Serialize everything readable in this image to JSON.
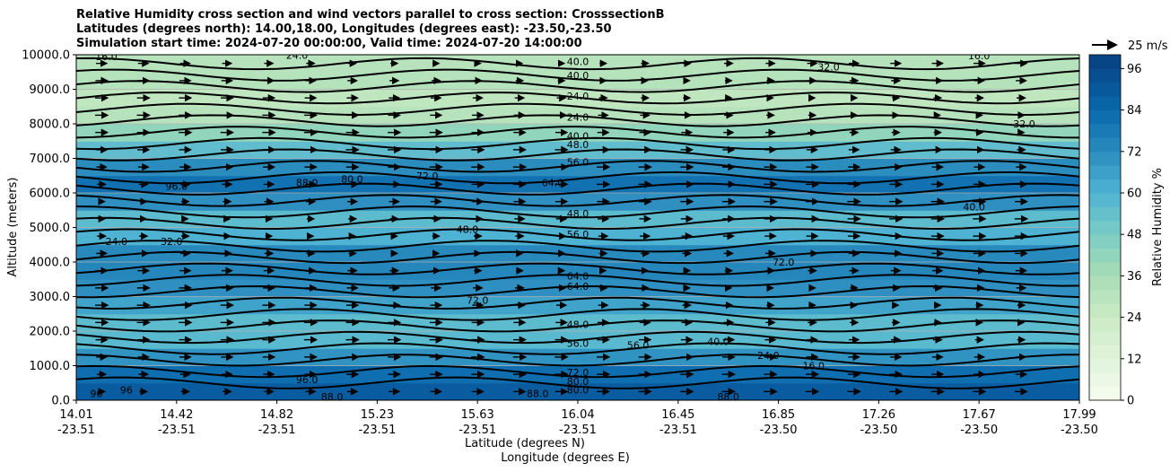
{
  "chart_data": {
    "type": "contour",
    "title_lines": [
      "Relative Humidity cross section and wind vectors parallel to cross section: CrosssectionB",
      "Latitudes (degrees north): 14.00,18.00, Longitudes (degrees east): -23.50,-23.50",
      "Simulation start time: 2024-07-20 00:00:00, Valid time: 2024-07-20 14:00:00"
    ],
    "ylabel": "Altitude (meters)",
    "xlabel_1": "Latitude (degrees N)",
    "xlabel_2": "Longitude (degrees E)",
    "ylim": [
      0,
      10000
    ],
    "yticks": [
      "0.0",
      "1000.0",
      "2000.0",
      "3000.0",
      "4000.0",
      "5000.0",
      "6000.0",
      "7000.0",
      "8000.0",
      "9000.0",
      "10000.0"
    ],
    "xticks_lat": [
      "14.01",
      "14.42",
      "14.82",
      "15.23",
      "15.63",
      "16.04",
      "16.45",
      "16.85",
      "17.26",
      "17.67",
      "17.99"
    ],
    "xticks_lon": [
      "-23.51",
      "-23.51",
      "-23.51",
      "-23.51",
      "-23.51",
      "-23.51",
      "-23.51",
      "-23.50",
      "-23.50",
      "-23.50",
      "-23.50"
    ],
    "colorbar_label": "Relative Humidity %",
    "colorbar_ticks": [
      "0",
      "12",
      "24",
      "36",
      "48",
      "60",
      "72",
      "84",
      "96"
    ],
    "colorbar_range": [
      0,
      100
    ],
    "quiver_key_label": "25 m/s",
    "humidity_profile": [
      {
        "alt": 0,
        "rh": 92
      },
      {
        "alt": 500,
        "rh": 86
      },
      {
        "alt": 1000,
        "rh": 78
      },
      {
        "alt": 1500,
        "rh": 62
      },
      {
        "alt": 2000,
        "rh": 52
      },
      {
        "alt": 2500,
        "rh": 60
      },
      {
        "alt": 3000,
        "rh": 70
      },
      {
        "alt": 3500,
        "rh": 72
      },
      {
        "alt": 4000,
        "rh": 76
      },
      {
        "alt": 4500,
        "rh": 70
      },
      {
        "alt": 5000,
        "rh": 50
      },
      {
        "alt": 5500,
        "rh": 62
      },
      {
        "alt": 6000,
        "rh": 80
      },
      {
        "alt": 6500,
        "rh": 82
      },
      {
        "alt": 7000,
        "rh": 62
      },
      {
        "alt": 7500,
        "rh": 48
      },
      {
        "alt": 8000,
        "rh": 36
      },
      {
        "alt": 8500,
        "rh": 26
      },
      {
        "alt": 9000,
        "rh": 30
      },
      {
        "alt": 9500,
        "rh": 34
      },
      {
        "alt": 10000,
        "rh": 28
      }
    ],
    "contour_labels": [
      {
        "text": "40.0",
        "x": 0.5,
        "alt": 9800
      },
      {
        "text": "40.0",
        "x": 0.5,
        "alt": 9400
      },
      {
        "text": "32.0",
        "x": 0.75,
        "alt": 9650
      },
      {
        "text": "16.0",
        "x": 0.9,
        "alt": 9980
      },
      {
        "text": "24.0",
        "x": 0.22,
        "alt": 9990
      },
      {
        "text": "16.0",
        "x": 0.03,
        "alt": 9950
      },
      {
        "text": "24.0",
        "x": 0.5,
        "alt": 8800
      },
      {
        "text": "24.0",
        "x": 0.5,
        "alt": 8200
      },
      {
        "text": "40.0",
        "x": 0.5,
        "alt": 7650
      },
      {
        "text": "48.0",
        "x": 0.5,
        "alt": 7400
      },
      {
        "text": "56.0",
        "x": 0.5,
        "alt": 6900
      },
      {
        "text": "48.0",
        "x": 0.5,
        "alt": 5400
      },
      {
        "text": "48.0",
        "x": 0.39,
        "alt": 4950
      },
      {
        "text": "56.0",
        "x": 0.5,
        "alt": 4800
      },
      {
        "text": "64.0",
        "x": 0.5,
        "alt": 3600
      },
      {
        "text": "64.0",
        "x": 0.5,
        "alt": 3300
      },
      {
        "text": "72.0",
        "x": 0.4,
        "alt": 2900
      },
      {
        "text": "48.0",
        "x": 0.5,
        "alt": 2200
      },
      {
        "text": "56.0",
        "x": 0.5,
        "alt": 1650
      },
      {
        "text": "56.0",
        "x": 0.56,
        "alt": 1600
      },
      {
        "text": "72.0",
        "x": 0.5,
        "alt": 800
      },
      {
        "text": "80.0",
        "x": 0.5,
        "alt": 550
      },
      {
        "text": "80.0",
        "x": 0.5,
        "alt": 300
      },
      {
        "text": "88.0",
        "x": 0.46,
        "alt": 200
      },
      {
        "text": "88.0",
        "x": 0.65,
        "alt": 100
      },
      {
        "text": "96.0",
        "x": 0.1,
        "alt": 6200
      },
      {
        "text": "88.0",
        "x": 0.23,
        "alt": 6300
      },
      {
        "text": "80.0",
        "x": 0.275,
        "alt": 6400
      },
      {
        "text": "72.0",
        "x": 0.35,
        "alt": 6500
      },
      {
        "text": "64.0",
        "x": 0.475,
        "alt": 6300
      },
      {
        "text": "40.0",
        "x": 0.895,
        "alt": 5600
      },
      {
        "text": "32.0",
        "x": 0.945,
        "alt": 8000
      },
      {
        "text": "24.0",
        "x": 0.04,
        "alt": 4600
      },
      {
        "text": "32.0",
        "x": 0.095,
        "alt": 4600
      },
      {
        "text": "72.0",
        "x": 0.705,
        "alt": 4000
      },
      {
        "text": "40.0",
        "x": 0.64,
        "alt": 1700
      },
      {
        "text": "24.0",
        "x": 0.69,
        "alt": 1300
      },
      {
        "text": "16.0",
        "x": 0.735,
        "alt": 1000
      },
      {
        "text": "96.0",
        "x": 0.23,
        "alt": 600
      },
      {
        "text": "96",
        "x": 0.02,
        "alt": 200
      },
      {
        "text": "96",
        "x": 0.05,
        "alt": 300
      },
      {
        "text": "88.0",
        "x": 0.255,
        "alt": 100
      }
    ]
  }
}
